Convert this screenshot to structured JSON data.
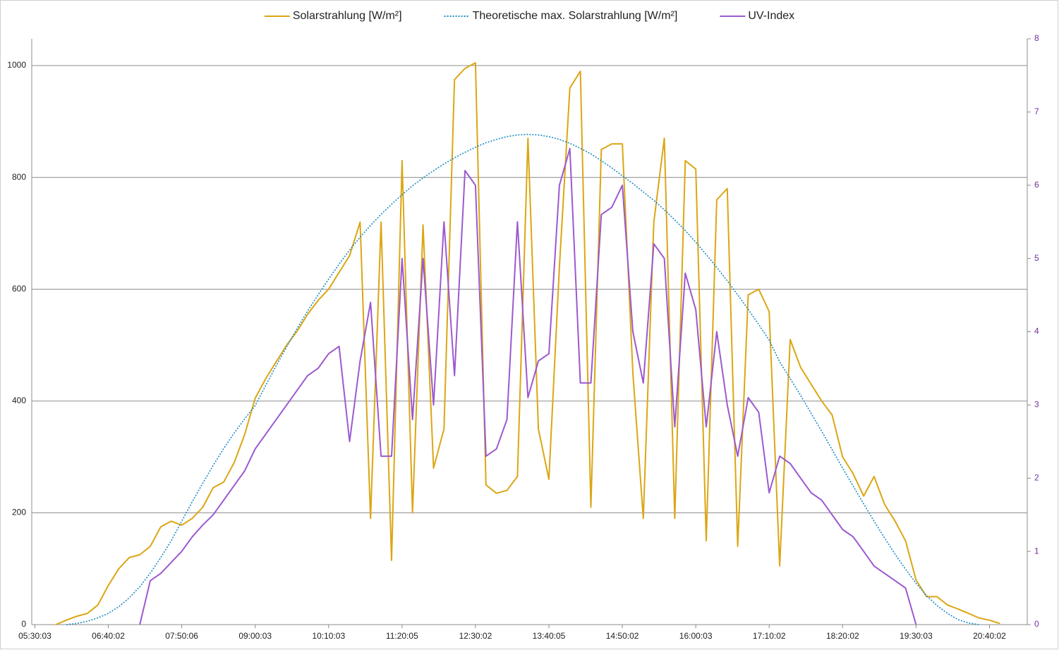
{
  "chart_data": {
    "type": "line",
    "x": [
      330,
      340,
      350,
      360,
      370,
      380,
      390,
      400,
      410,
      420,
      430,
      440,
      450,
      460,
      470,
      480,
      490,
      500,
      510,
      520,
      530,
      540,
      550,
      560,
      570,
      580,
      590,
      600,
      610,
      620,
      630,
      640,
      650,
      660,
      670,
      680,
      690,
      700,
      710,
      720,
      730,
      740,
      750,
      760,
      770,
      780,
      790,
      800,
      810,
      820,
      830,
      840,
      850,
      860,
      870,
      880,
      890,
      900,
      910,
      920,
      930,
      940,
      950,
      960,
      970,
      980,
      990,
      1000,
      1010,
      1020,
      1030,
      1040,
      1050,
      1060,
      1070,
      1080,
      1090,
      1100,
      1110,
      1120,
      1130,
      1140,
      1150,
      1160,
      1170,
      1180,
      1190,
      1200,
      1210,
      1220,
      1230,
      1240,
      1250
    ],
    "series": [
      {
        "name": "Solarstrahlung [W/m²]",
        "color": "#dba614",
        "dash": "solid",
        "values": [
          null,
          null,
          0,
          8,
          15,
          20,
          35,
          70,
          100,
          120,
          125,
          140,
          175,
          185,
          178,
          190,
          210,
          245,
          255,
          290,
          340,
          405,
          440,
          470,
          500,
          525,
          555,
          580,
          600,
          630,
          660,
          720,
          190,
          720,
          115,
          830,
          200,
          715,
          280,
          350,
          975,
          995,
          1005,
          250,
          235,
          240,
          265,
          870,
          350,
          260,
          640,
          960,
          990,
          210,
          850,
          860,
          860,
          450,
          190,
          720,
          870,
          190,
          830,
          815,
          150,
          760,
          780,
          140,
          590,
          600,
          560,
          105,
          510,
          460,
          430,
          400,
          375,
          300,
          270,
          230,
          265,
          215,
          185,
          150,
          80,
          50,
          50,
          35,
          28,
          20,
          12,
          8,
          2
        ]
      },
      {
        "name": "Theoretische max. Solarstrahlung [W/m²]",
        "color": "#1e8bc3",
        "dash": "dotted",
        "values": [
          null,
          null,
          null,
          0,
          2,
          6,
          12,
          20,
          32,
          48,
          68,
          92,
          120,
          150,
          185,
          220,
          253,
          285,
          315,
          343,
          368,
          392,
          428,
          463,
          497,
          530,
          561,
          590,
          618,
          645,
          670,
          693,
          714,
          734,
          752,
          769,
          785,
          799,
          812,
          824,
          835,
          845,
          854,
          862,
          868,
          873,
          876,
          877,
          876,
          873,
          868,
          861,
          852,
          842,
          830,
          817,
          803,
          789,
          774,
          759,
          742,
          724,
          705,
          684,
          662,
          639,
          615,
          590,
          564,
          537,
          509,
          470,
          440,
          410,
          378,
          346,
          313,
          280,
          248,
          216,
          185,
          155,
          126,
          99,
          74,
          52,
          34,
          20,
          9,
          3,
          0,
          null,
          null
        ]
      },
      {
        "name": "UV-Index",
        "color": "#9b59d0",
        "dash": "solid",
        "axis": "y2",
        "values": [
          null,
          null,
          null,
          null,
          null,
          null,
          null,
          null,
          null,
          null,
          0,
          0.6,
          0.7,
          0.85,
          1.0,
          1.2,
          1.36,
          1.5,
          1.7,
          1.9,
          2.1,
          2.4,
          2.6,
          2.8,
          3.0,
          3.2,
          3.4,
          3.5,
          3.7,
          3.8,
          2.5,
          3.6,
          4.4,
          2.3,
          2.3,
          5.0,
          2.8,
          5.0,
          3.0,
          5.5,
          3.4,
          6.2,
          6.0,
          2.3,
          2.4,
          2.8,
          5.5,
          3.1,
          3.6,
          3.7,
          6.0,
          6.5,
          3.3,
          3.3,
          5.6,
          5.7,
          6.0,
          4.0,
          3.3,
          5.2,
          5.0,
          2.7,
          4.8,
          4.3,
          2.7,
          4.0,
          3.0,
          2.3,
          3.1,
          2.9,
          1.8,
          2.3,
          2.2,
          2.0,
          1.8,
          1.7,
          1.5,
          1.3,
          1.2,
          1.0,
          0.8,
          0.7,
          0.6,
          0.5,
          0,
          null,
          null,
          null,
          null,
          null,
          null,
          null,
          null
        ]
      }
    ],
    "xlim": [
      327,
      1276
    ],
    "xticks": [
      {
        "value": 330,
        "label": "05:30:03"
      },
      {
        "value": 400,
        "label": "06:40:02"
      },
      {
        "value": 470,
        "label": "07:50:06"
      },
      {
        "value": 540,
        "label": "09:00:03"
      },
      {
        "value": 610,
        "label": "10:10:03"
      },
      {
        "value": 680,
        "label": "11:20:05"
      },
      {
        "value": 750,
        "label": "12:30:02"
      },
      {
        "value": 820,
        "label": "13:40:05"
      },
      {
        "value": 890,
        "label": "14:50:02"
      },
      {
        "value": 960,
        "label": "16:00:03"
      },
      {
        "value": 1030,
        "label": "17:10:02"
      },
      {
        "value": 1100,
        "label": "18:20:02"
      },
      {
        "value": 1170,
        "label": "19:30:03"
      },
      {
        "value": 1240,
        "label": "20:40:02"
      }
    ],
    "ylim": [
      0,
      1048
    ],
    "yticks": [
      0,
      200,
      400,
      600,
      800,
      1000
    ],
    "y2lim": [
      0,
      8
    ],
    "y2ticks": [
      0,
      1,
      2,
      3,
      4,
      5,
      6,
      7,
      8
    ],
    "grid": true,
    "legend": "top"
  }
}
